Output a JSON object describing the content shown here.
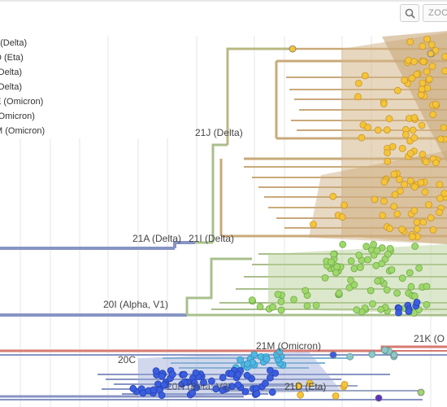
{
  "toolbar": {
    "zoom_icon": "magnifier-icon",
    "zoom_label": "ZOO"
  },
  "legend": {
    "items": [
      {
        "label": ". (Delta)"
      },
      {
        "label": "D (Eta)"
      },
      {
        "label": "(Delta)"
      },
      {
        "label": "(Delta)"
      },
      {
        "label": "E (Omicron)"
      },
      {
        "label": "(Omicron)"
      },
      {
        "label": "M (Omicron)"
      }
    ]
  },
  "clade_labels": {
    "c21j": "21J (Delta)",
    "c21a": "21A (Delta)",
    "c21i": "21I (Delta)",
    "c20i": "20I (Alpha, V1)",
    "c21k": "21K (O",
    "c21m": "21M (Omicron)",
    "c20c": "20C",
    "c20h": "20H (Beta, V2)",
    "c21d": "21D (Eta)"
  },
  "colors": {
    "delta_branch": "#c9a97a",
    "delta_tip": "#f4c43a",
    "alpha_branch": "#a9bf8c",
    "alpha_tip": "#9fd86a",
    "root_branch": "#8794c4",
    "omicron_branch": "#d67a72",
    "beta_tip": "#3b5ee0",
    "c20c_tip": "#52b7e0",
    "grid": "#e6e6e6"
  }
}
